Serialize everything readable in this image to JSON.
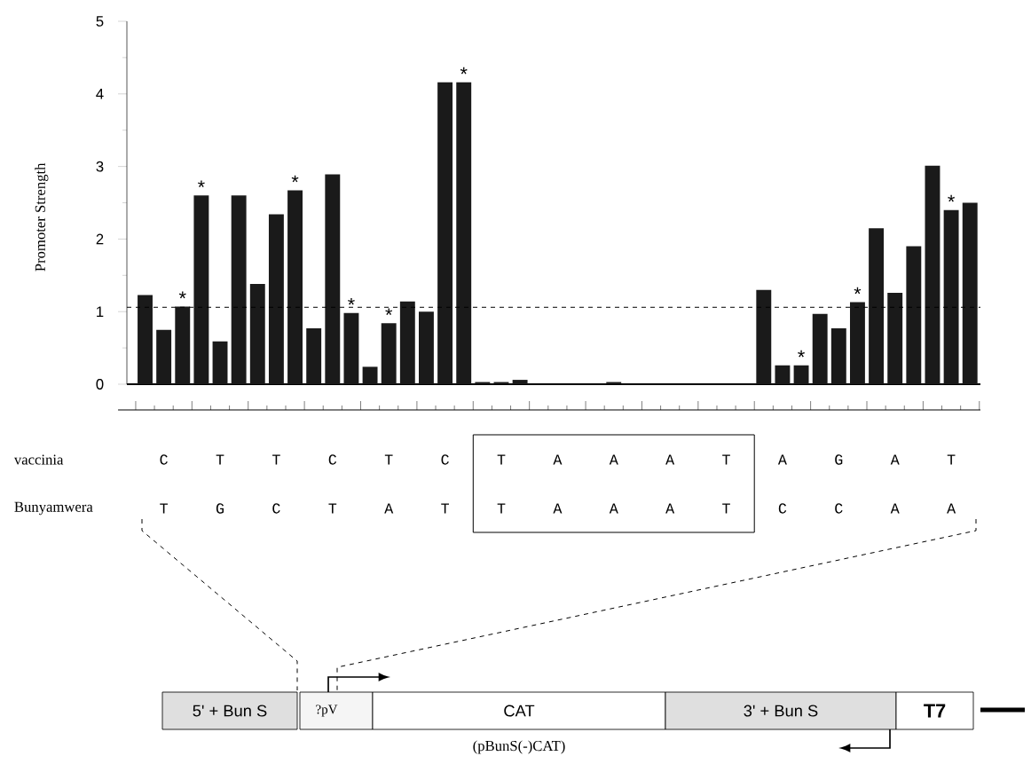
{
  "chart_data": {
    "type": "bar",
    "ylabel": "Promoter Strength",
    "categories": [
      null,
      null,
      null,
      null,
      null,
      null,
      null,
      null,
      null,
      null,
      null,
      null,
      null,
      null,
      null,
      null,
      null,
      null,
      null,
      null,
      null,
      null,
      null,
      null,
      null,
      null,
      null,
      null,
      null,
      null,
      null,
      null,
      null,
      null,
      null,
      null,
      null,
      null,
      null,
      null,
      null,
      null,
      null,
      null,
      null
    ],
    "values": [
      1.23,
      0.75,
      1.07,
      2.6,
      0.59,
      2.6,
      1.38,
      2.34,
      2.67,
      0.77,
      2.89,
      0.98,
      0.24,
      0.84,
      1.14,
      1.0,
      4.16,
      4.16,
      0.03,
      0.03,
      0.06,
      0,
      0,
      0,
      0,
      0.03,
      0,
      0,
      0,
      0,
      0,
      0,
      0,
      1.3,
      0.26,
      0.26,
      0.97,
      0.77,
      1.13,
      2.15,
      1.26,
      1.9,
      3.01,
      2.4,
      2.5
    ],
    "value_labels": [
      null,
      null,
      "*",
      "*",
      null,
      null,
      null,
      null,
      "*",
      null,
      null,
      "*",
      null,
      "*",
      null,
      null,
      null,
      "*",
      null,
      null,
      null,
      null,
      null,
      null,
      null,
      null,
      null,
      null,
      null,
      null,
      null,
      null,
      null,
      null,
      null,
      "*",
      null,
      null,
      "*",
      null,
      null,
      null,
      null,
      "*",
      null
    ],
    "color": "#1a1a1a",
    "ylim": [
      0,
      5
    ],
    "yticks": [
      0,
      {
        "value": 0.5,
        "label": null
      },
      1,
      {
        "value": 1.5,
        "label": null
      },
      2,
      {
        "value": 2.5,
        "label": null
      },
      3,
      {
        "value": 3.5,
        "label": null
      },
      4,
      {
        "value": 4.5,
        "label": null
      },
      5
    ],
    "ref_lines": [
      {
        "axis": "y",
        "value": 1.06,
        "line_style": "dashed"
      }
    ],
    "grid": false,
    "annotations": [
      "vaccinia",
      "C",
      "T",
      "T",
      "C",
      "T",
      "C",
      "T",
      "A",
      "A",
      "A",
      "T",
      "A",
      "G",
      "A",
      "T",
      "Bunyamwera",
      "T",
      "G",
      "C",
      "T",
      "A",
      "T",
      "T",
      "A",
      "A",
      "A",
      "T",
      "C",
      "C",
      "A",
      "A",
      "5' + Bun S",
      "?pV",
      "CAT",
      "3' + Bun S",
      "T7",
      "(pBunS(-)CAT)"
    ]
  }
}
